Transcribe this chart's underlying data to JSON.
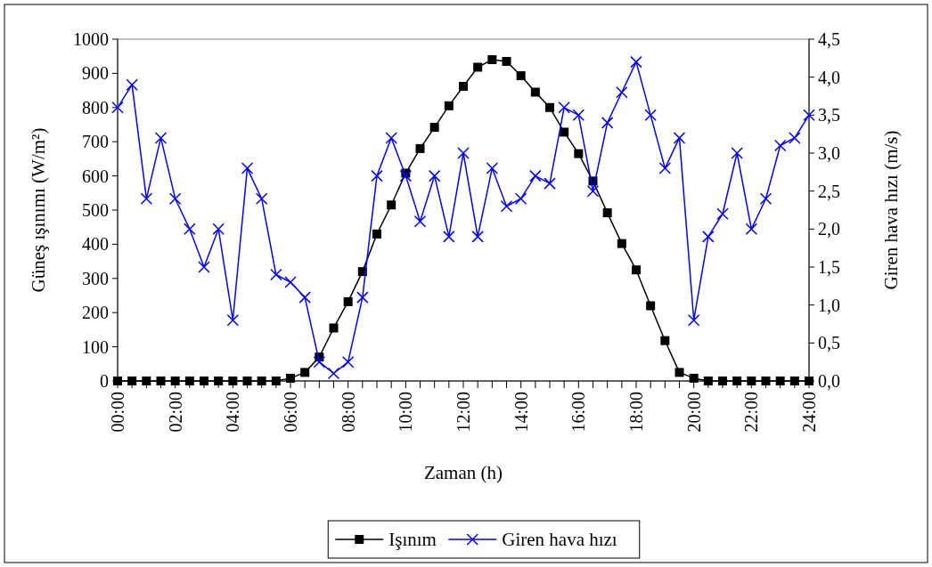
{
  "chart_data": {
    "type": "line",
    "xlabel": "Zaman (h)",
    "ylabel": "Güneş ışınımı (W/m²)",
    "y2label": "Giren hava hızı (m/s)",
    "x": [
      0,
      0.5,
      1,
      1.5,
      2,
      2.5,
      3,
      3.5,
      4,
      4.5,
      5,
      5.5,
      6,
      6.5,
      7,
      7.5,
      8,
      8.5,
      9,
      9.5,
      10,
      10.5,
      11,
      11.5,
      12,
      12.5,
      13,
      13.5,
      14,
      14.5,
      15,
      15.5,
      16,
      16.5,
      17,
      17.5,
      18,
      18.5,
      19,
      19.5,
      20,
      20.5,
      21,
      21.5,
      22,
      22.5,
      23,
      23.5,
      24
    ],
    "series": [
      {
        "name": "Işınım",
        "color": "#000000",
        "marker": "square",
        "values": [
          0,
          0,
          0,
          0,
          0,
          0,
          0,
          0,
          0,
          0,
          0,
          0,
          8,
          25,
          70,
          155,
          232,
          320,
          430,
          515,
          608,
          680,
          742,
          805,
          862,
          918,
          940,
          935,
          893,
          845,
          800,
          728,
          665,
          585,
          492,
          402,
          325,
          220,
          118,
          25,
          8,
          0,
          0,
          0,
          0,
          0,
          0,
          0,
          0
        ]
      },
      {
        "name": "Giren hava hızı",
        "color": "#0000ff",
        "marker": "cross",
        "axis": "y2",
        "values": [
          3.6,
          3.9,
          2.4,
          3.2,
          2.4,
          2.0,
          1.5,
          2.0,
          0.8,
          2.8,
          2.4,
          1.4,
          1.3,
          1.1,
          0.25,
          0.1,
          0.25,
          1.1,
          2.7,
          3.2,
          2.7,
          2.1,
          2.7,
          1.9,
          3.0,
          1.9,
          2.8,
          2.3,
          2.4,
          2.7,
          2.6,
          3.6,
          3.5,
          2.5,
          3.4,
          3.8,
          4.2,
          3.5,
          2.8,
          3.2,
          0.8,
          1.9,
          2.2,
          3.0,
          2.0,
          2.4,
          3.1,
          3.2,
          3.5
        ]
      }
    ],
    "xlim": [
      0,
      24
    ],
    "xticks": [
      {
        "value": 0,
        "label": "00:00"
      },
      {
        "value": 0.5,
        "label": null
      },
      {
        "value": 1,
        "label": null
      },
      {
        "value": 1.5,
        "label": null
      },
      {
        "value": 2,
        "label": "02:00"
      },
      {
        "value": 2.5,
        "label": null
      },
      {
        "value": 3,
        "label": null
      },
      {
        "value": 3.5,
        "label": null
      },
      {
        "value": 4,
        "label": "04:00"
      },
      {
        "value": 4.5,
        "label": null
      },
      {
        "value": 5,
        "label": null
      },
      {
        "value": 5.5,
        "label": null
      },
      {
        "value": 6,
        "label": "06:00"
      },
      {
        "value": 6.5,
        "label": null
      },
      {
        "value": 7,
        "label": null
      },
      {
        "value": 7.5,
        "label": null
      },
      {
        "value": 8,
        "label": "08:00"
      },
      {
        "value": 8.5,
        "label": null
      },
      {
        "value": 9,
        "label": null
      },
      {
        "value": 9.5,
        "label": null
      },
      {
        "value": 10,
        "label": "10:00"
      },
      {
        "value": 10.5,
        "label": null
      },
      {
        "value": 11,
        "label": null
      },
      {
        "value": 11.5,
        "label": null
      },
      {
        "value": 12,
        "label": "12:00"
      },
      {
        "value": 12.5,
        "label": null
      },
      {
        "value": 13,
        "label": null
      },
      {
        "value": 13.5,
        "label": null
      },
      {
        "value": 14,
        "label": "14:00"
      },
      {
        "value": 14.5,
        "label": null
      },
      {
        "value": 15,
        "label": null
      },
      {
        "value": 15.5,
        "label": null
      },
      {
        "value": 16,
        "label": "16:00"
      },
      {
        "value": 16.5,
        "label": null
      },
      {
        "value": 17,
        "label": null
      },
      {
        "value": 17.5,
        "label": null
      },
      {
        "value": 18,
        "label": "18:00"
      },
      {
        "value": 18.5,
        "label": null
      },
      {
        "value": 19,
        "label": null
      },
      {
        "value": 19.5,
        "label": null
      },
      {
        "value": 20,
        "label": "20:00"
      },
      {
        "value": 20.5,
        "label": null
      },
      {
        "value": 21,
        "label": null
      },
      {
        "value": 21.5,
        "label": null
      },
      {
        "value": 22,
        "label": "22:00"
      },
      {
        "value": 22.5,
        "label": null
      },
      {
        "value": 23,
        "label": null
      },
      {
        "value": 23.5,
        "label": null
      },
      {
        "value": 24,
        "label": "24:00"
      }
    ],
    "ylim": [
      0,
      1000
    ],
    "yticks": [
      0,
      100,
      200,
      300,
      400,
      500,
      600,
      700,
      800,
      900,
      1000
    ],
    "y2lim": [
      0,
      4.5
    ],
    "y2ticks": [
      {
        "value": 0,
        "label": "0,0"
      },
      {
        "value": 0.5,
        "label": "0,5"
      },
      {
        "value": 1,
        "label": "1,0"
      },
      {
        "value": 1.5,
        "label": "1,5"
      },
      {
        "value": 2,
        "label": "2,0"
      },
      {
        "value": 2.5,
        "label": "2,5"
      },
      {
        "value": 3,
        "label": "3,0"
      },
      {
        "value": 3.5,
        "label": "3,5"
      },
      {
        "value": 4,
        "label": "4,0"
      },
      {
        "value": 4.5,
        "label": "4,5"
      }
    ],
    "grid": false,
    "legend": "bottom",
    "line_style": "solid"
  }
}
